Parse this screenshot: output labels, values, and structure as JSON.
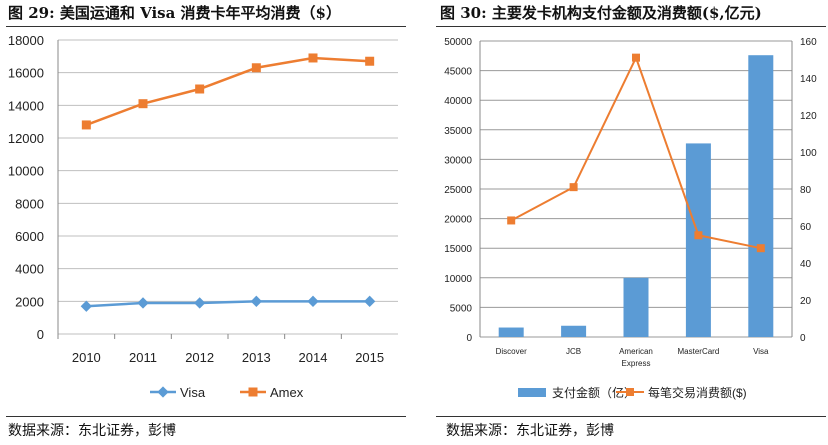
{
  "chart_data": [
    {
      "type": "line",
      "title": "图 29: 美国运通和 Visa 消费卡年平均消费（$）",
      "categories": [
        "2010",
        "2011",
        "2012",
        "2013",
        "2014",
        "2015"
      ],
      "series": [
        {
          "name": "Visa",
          "values": [
            1700,
            1900,
            1900,
            2000,
            2000,
            2000
          ],
          "color": "#5b9bd5"
        },
        {
          "name": "Amex",
          "values": [
            12800,
            14100,
            15000,
            16300,
            16900,
            16700
          ],
          "color": "#ed7d31"
        }
      ],
      "ylim": [
        0,
        18000
      ],
      "yticks": [
        0,
        2000,
        4000,
        6000,
        8000,
        10000,
        12000,
        14000,
        16000,
        18000
      ],
      "grid": true,
      "legend": "bottom"
    },
    {
      "type": "bar+line",
      "title": "图 30: 主要发卡机构支付金额及消费额($,亿元)",
      "categories": [
        "Discover",
        "JCB",
        "American Express",
        "MasterCard",
        "Visa"
      ],
      "series": [
        {
          "name": "支付金额（亿）",
          "type": "bar",
          "axis": "left",
          "values": [
            1600,
            1900,
            10000,
            32700,
            47600
          ],
          "color": "#5b9bd5"
        },
        {
          "name": "每笔交易消费额($)",
          "type": "line",
          "axis": "right",
          "values": [
            63,
            81,
            151,
            55,
            48
          ],
          "color": "#ed7d31"
        }
      ],
      "ylim": [
        0,
        50000
      ],
      "yticks": [
        0,
        5000,
        10000,
        15000,
        20000,
        25000,
        30000,
        35000,
        40000,
        45000,
        50000
      ],
      "y2lim": [
        0,
        160
      ],
      "y2ticks": [
        0,
        20,
        40,
        60,
        80,
        100,
        120,
        140,
        160
      ],
      "grid": true,
      "legend": "bottom"
    }
  ],
  "source": {
    "left": "数据来源：东北证券，彭博",
    "right": "数据来源：东北证券，彭博"
  }
}
